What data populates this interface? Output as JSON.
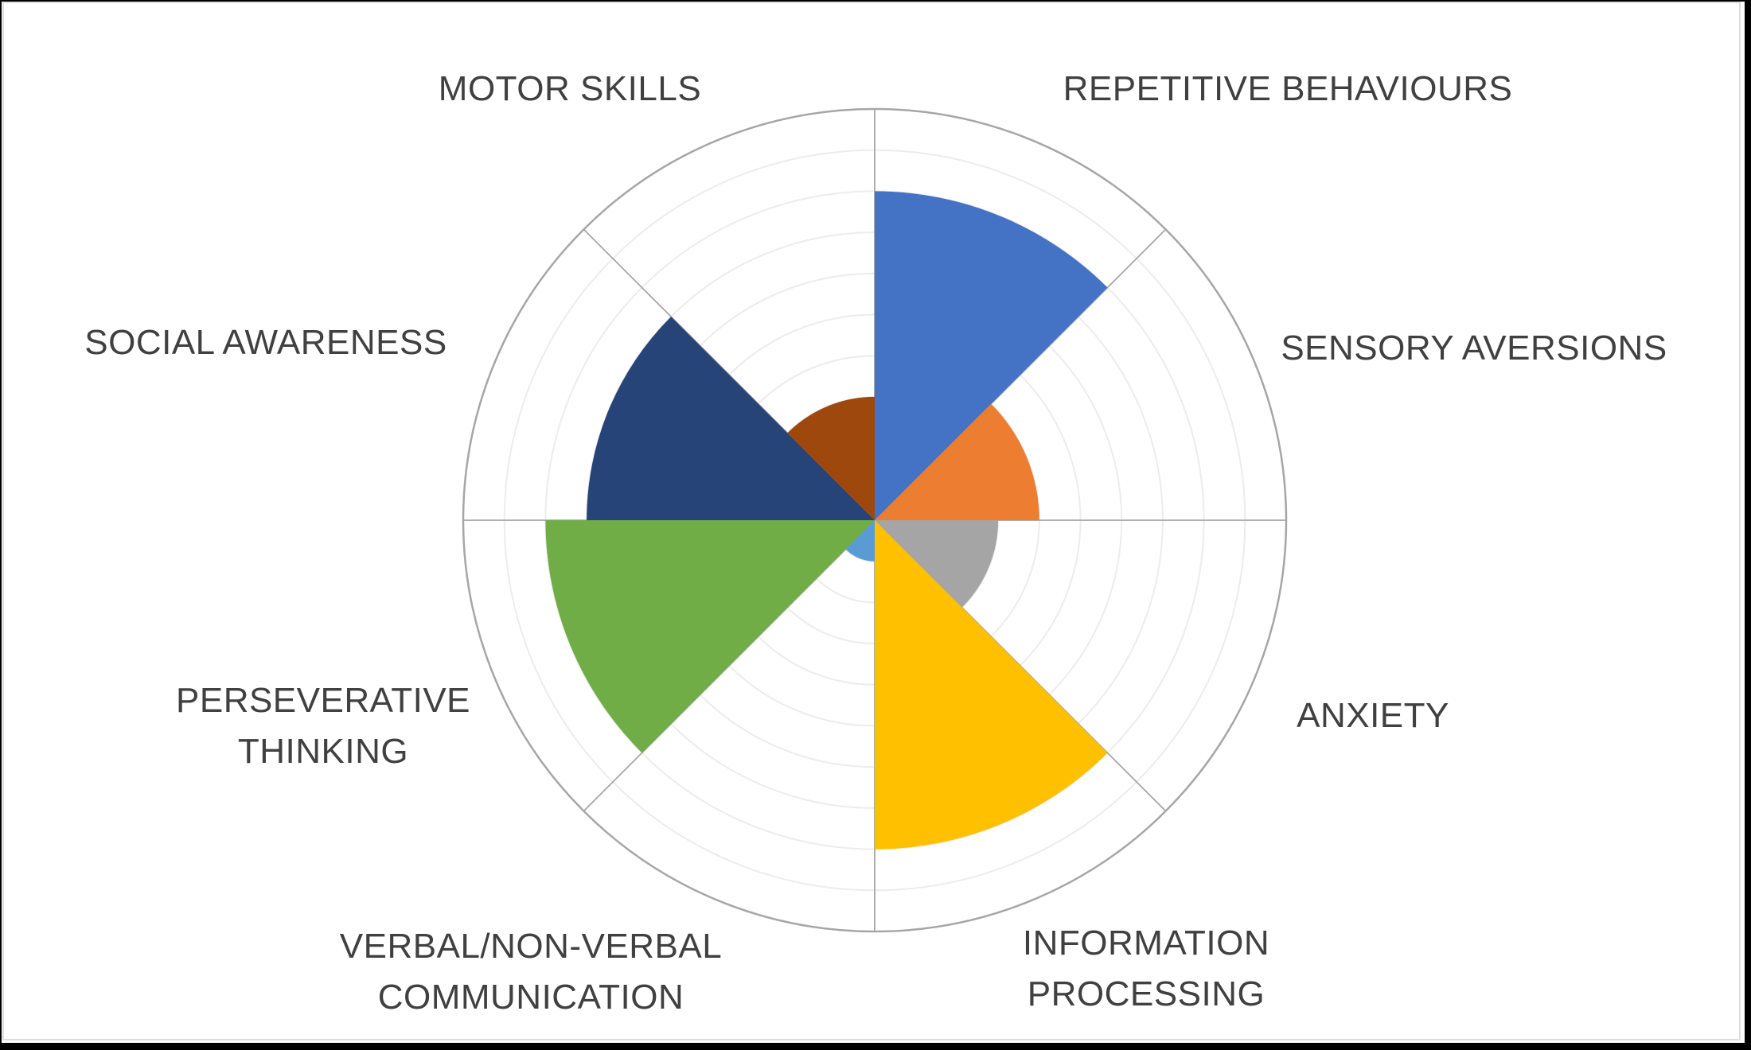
{
  "chart_data": {
    "type": "polar_rose",
    "title": "",
    "scale": {
      "min": 0,
      "max": 10,
      "ring_interval": 1,
      "rings": 10,
      "tick_labels_visible": false
    },
    "layout_hints": {
      "sector_angle_deg": 45,
      "start_at": "12 o'clock, clockwise",
      "grid": "concentric circles + 8 radial spokes",
      "legend": "none",
      "background": "#FFFFFF"
    },
    "grid_style": {
      "outer_circle_color": "#A6A6A6",
      "spoke_color": "#A6A6A6",
      "inner_ring_color": "#ECECEC"
    },
    "text_color": "#404040",
    "categories": [
      {
        "label": "REPETITIVE BEHAVIOURS",
        "label_lines": [
          "REPETITIVE BEHAVIOURS"
        ],
        "value": 8,
        "color": "#4472C4"
      },
      {
        "label": "SENSORY AVERSIONS",
        "label_lines": [
          "SENSORY AVERSIONS"
        ],
        "value": 4,
        "color": "#ED7D31"
      },
      {
        "label": "ANXIETY",
        "label_lines": [
          "ANXIETY"
        ],
        "value": 3,
        "color": "#A5A5A5"
      },
      {
        "label": "INFORMATION PROCESSING",
        "label_lines": [
          "INFORMATION",
          "PROCESSING"
        ],
        "value": 8,
        "color": "#FFC000"
      },
      {
        "label": "VERBAL/NON-VERBAL COMMUNICATION",
        "label_lines": [
          "VERBAL/NON-VERBAL",
          "COMMUNICATION"
        ],
        "value": 1,
        "color": "#5B9BD5"
      },
      {
        "label": "PERSEVERATIVE THINKING",
        "label_lines": [
          "PERSEVERATIVE",
          "THINKING"
        ],
        "value": 8,
        "color": "#70AD47"
      },
      {
        "label": "SOCIAL AWARENESS",
        "label_lines": [
          "SOCIAL AWARENESS"
        ],
        "value": 7,
        "color": "#264478"
      },
      {
        "label": "MOTOR SKILLS",
        "label_lines": [
          "MOTOR SKILLS"
        ],
        "value": 3,
        "color": "#9E480E"
      }
    ]
  }
}
